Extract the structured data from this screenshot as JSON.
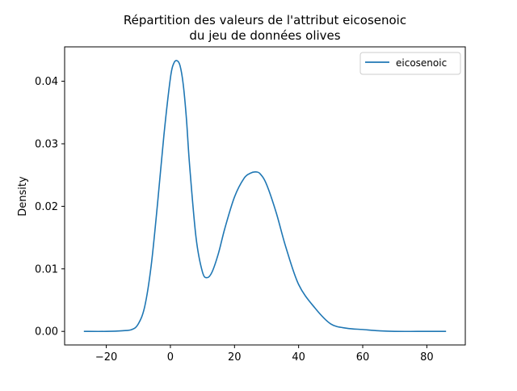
{
  "chart_data": {
    "type": "line",
    "title_line1": "Répartition des valeurs de l'attribut eicosenoic",
    "title_line2": "du jeu de données olives",
    "xlabel": "",
    "ylabel": "Density",
    "xlim": [
      -33.0,
      92.0
    ],
    "ylim": [
      -0.00217,
      0.0455
    ],
    "xticks": [
      -20,
      0,
      20,
      40,
      60,
      80
    ],
    "xtick_labels": [
      "−20",
      "0",
      "20",
      "40",
      "60",
      "80"
    ],
    "yticks": [
      0.0,
      0.01,
      0.02,
      0.03,
      0.04
    ],
    "ytick_labels": [
      "0.00",
      "0.01",
      "0.02",
      "0.03",
      "0.04"
    ],
    "grid": false,
    "legend_position": "top-right",
    "series": [
      {
        "name": "eicosenoic",
        "color": "#1f77b4",
        "x": [
          -27,
          -20,
          -15,
          -12,
          -10,
          -8,
          -6,
          -4,
          -2,
          0,
          1,
          2,
          3,
          4,
          5,
          6,
          8,
          10,
          11.5,
          13,
          15,
          17,
          20,
          23,
          25,
          26.5,
          28,
          30,
          33,
          36,
          40,
          45,
          50,
          55,
          60,
          65,
          70,
          80,
          86
        ],
        "y": [
          0.0,
          0.0,
          0.0001,
          0.0003,
          0.0012,
          0.004,
          0.0105,
          0.0205,
          0.0315,
          0.0405,
          0.0428,
          0.0433,
          0.0425,
          0.0395,
          0.034,
          0.0265,
          0.015,
          0.0095,
          0.0086,
          0.0095,
          0.0125,
          0.0165,
          0.0215,
          0.0245,
          0.0253,
          0.0255,
          0.0252,
          0.0235,
          0.019,
          0.0135,
          0.0075,
          0.0038,
          0.0012,
          0.0005,
          0.0003,
          0.0001,
          0.0,
          0.0,
          0.0
        ]
      }
    ]
  }
}
